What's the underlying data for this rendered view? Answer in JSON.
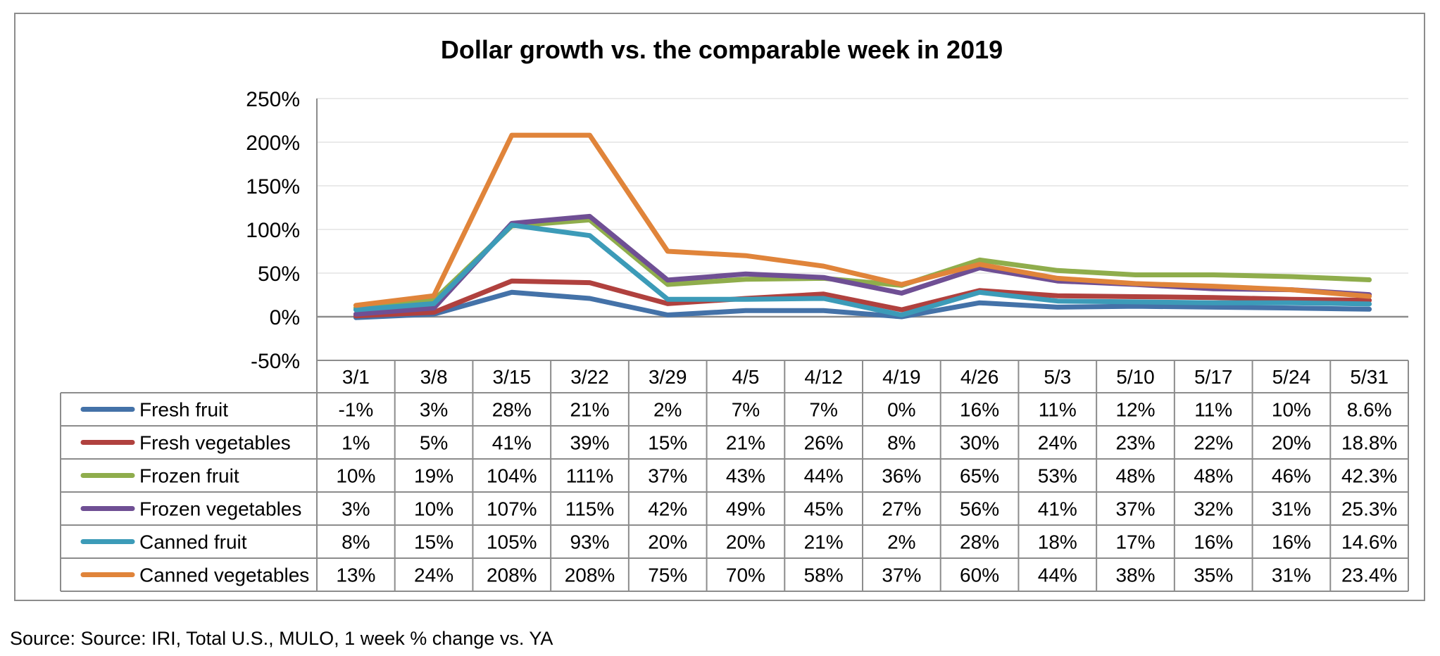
{
  "source_note": "Source: Source: IRI, Total U.S., MULO, 1 week % change vs. YA",
  "chart_data": {
    "type": "line",
    "title": "Dollar growth vs. the comparable week in 2019",
    "xlabel": "",
    "ylabel": "",
    "ylim": [
      -50,
      250
    ],
    "yticks": [
      -50,
      0,
      50,
      100,
      150,
      200,
      250
    ],
    "ytick_labels": [
      "-50%",
      "0%",
      "50%",
      "100%",
      "150%",
      "200%",
      "250%"
    ],
    "grid": true,
    "legend": "data-table",
    "categories": [
      "3/1",
      "3/8",
      "3/15",
      "3/22",
      "3/29",
      "4/5",
      "4/12",
      "4/19",
      "4/26",
      "5/3",
      "5/10",
      "5/17",
      "5/24",
      "5/31"
    ],
    "series": [
      {
        "name": "Fresh fruit",
        "color": "#4472a8",
        "values": [
          -1,
          3,
          28,
          21,
          2,
          7,
          7,
          0,
          16,
          11,
          12,
          11,
          10,
          8.6
        ],
        "labels": [
          "-1%",
          "3%",
          "28%",
          "21%",
          "2%",
          "7%",
          "7%",
          "0%",
          "16%",
          "11%",
          "12%",
          "11%",
          "10%",
          "8.6%"
        ]
      },
      {
        "name": "Fresh vegetables",
        "color": "#b0413e",
        "values": [
          1,
          5,
          41,
          39,
          15,
          21,
          26,
          8,
          30,
          24,
          23,
          22,
          20,
          18.8
        ],
        "labels": [
          "1%",
          "5%",
          "41%",
          "39%",
          "15%",
          "21%",
          "26%",
          "8%",
          "30%",
          "24%",
          "23%",
          "22%",
          "20%",
          "18.8%"
        ]
      },
      {
        "name": "Frozen fruit",
        "color": "#8fad4c",
        "values": [
          10,
          19,
          104,
          111,
          37,
          43,
          44,
          36,
          65,
          53,
          48,
          48,
          46,
          42.3
        ],
        "labels": [
          "10%",
          "19%",
          "104%",
          "111%",
          "37%",
          "43%",
          "44%",
          "36%",
          "65%",
          "53%",
          "48%",
          "48%",
          "46%",
          "42.3%"
        ]
      },
      {
        "name": "Frozen vegetables",
        "color": "#6f4f94",
        "values": [
          3,
          10,
          107,
          115,
          42,
          49,
          45,
          27,
          56,
          41,
          37,
          32,
          31,
          25.3
        ],
        "labels": [
          "3%",
          "10%",
          "107%",
          "115%",
          "42%",
          "49%",
          "45%",
          "27%",
          "56%",
          "41%",
          "37%",
          "32%",
          "31%",
          "25.3%"
        ]
      },
      {
        "name": "Canned fruit",
        "color": "#3c9bb8",
        "values": [
          8,
          15,
          105,
          93,
          20,
          20,
          21,
          2,
          28,
          18,
          17,
          16,
          16,
          14.6
        ],
        "labels": [
          "8%",
          "15%",
          "105%",
          "93%",
          "20%",
          "20%",
          "21%",
          "2%",
          "28%",
          "18%",
          "17%",
          "16%",
          "16%",
          "14.6%"
        ]
      },
      {
        "name": "Canned vegetables",
        "color": "#e0843a",
        "values": [
          13,
          24,
          208,
          208,
          75,
          70,
          58,
          37,
          60,
          44,
          38,
          35,
          31,
          23.4
        ],
        "labels": [
          "13%",
          "24%",
          "208%",
          "208%",
          "75%",
          "70%",
          "58%",
          "37%",
          "60%",
          "44%",
          "38%",
          "35%",
          "31%",
          "23.4%"
        ]
      }
    ]
  }
}
